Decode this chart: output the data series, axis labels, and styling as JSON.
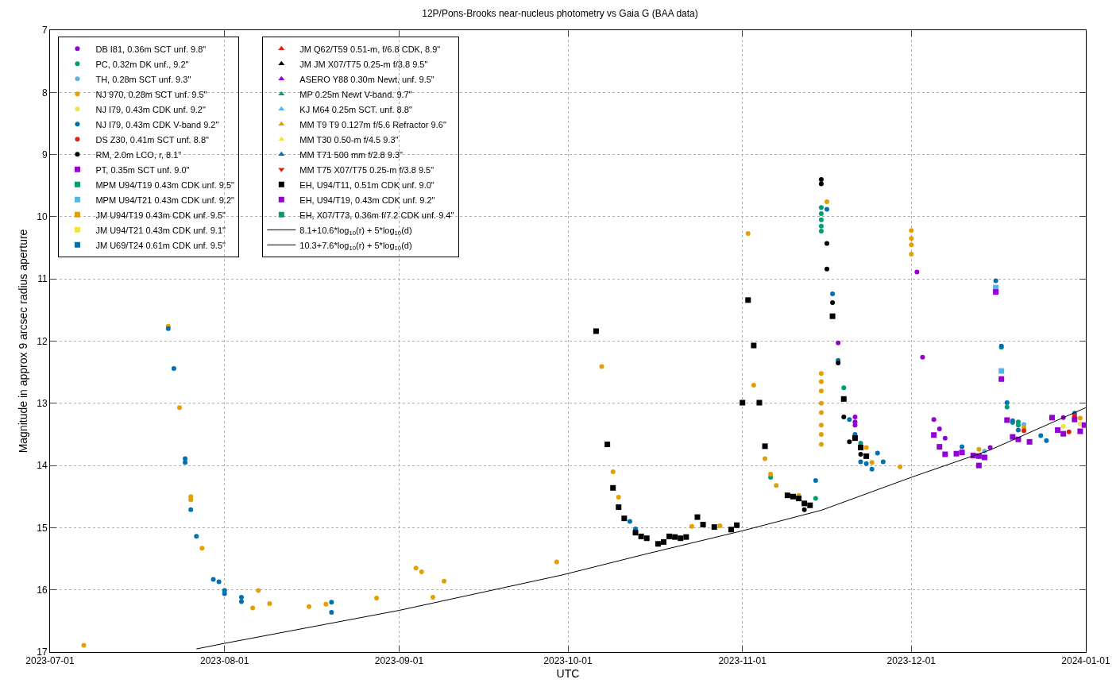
{
  "chart_data": {
    "type": "scatter",
    "title": "12P/Pons-Brooks near-nucleus photometry vs Gaia G (BAA data)",
    "xlabel": "UTC",
    "ylabel": "Magnitude in approx 9 arcsec radius aperture",
    "xlim": [
      "2023-07-01",
      "2024-01-01"
    ],
    "xticks": [
      "2023-07-01",
      "2023-08-01",
      "2023-09-01",
      "2023-10-01",
      "2023-11-01",
      "2023-12-01",
      "2024-01-01"
    ],
    "ylim": [
      17,
      7
    ],
    "yticks": [
      7,
      8,
      9,
      10,
      11,
      12,
      13,
      14,
      15,
      16,
      17
    ],
    "grid": true,
    "legend": "top left",
    "series": [
      {
        "name": "DB I81, 0.36m SCT unf. 9.8\"",
        "color": "#9400d3",
        "marker": "circle",
        "x": [
          "2023-11-18",
          "2023-11-21",
          "2023-11-21",
          "2023-11-21",
          "2023-12-02",
          "2023-12-03",
          "2023-12-05",
          "2023-12-06",
          "2023-12-07",
          "2023-12-15",
          "2023-12-28"
        ],
        "values": [
          12.03,
          13.22,
          13.3,
          13.35,
          10.89,
          12.26,
          13.26,
          13.41,
          13.56,
          13.71,
          13.23
        ]
      },
      {
        "name": "PC, 0.32m DK unf., 9.2\"",
        "color": "#009e73",
        "marker": "circle",
        "x": [
          "2023-11-06",
          "2023-11-14",
          "2023-11-15",
          "2023-11-15",
          "2023-11-15",
          "2023-11-15",
          "2023-11-15",
          "2023-11-19",
          "2023-11-22",
          "2023-12-17",
          "2023-12-18",
          "2023-12-19",
          "2023-12-20",
          "2023-12-20"
        ],
        "values": [
          14.19,
          14.53,
          9.85,
          9.95,
          10.05,
          10.15,
          10.23,
          12.75,
          13.64,
          12.1,
          13.06,
          13.31,
          13.3,
          13.35
        ]
      },
      {
        "name": "TH, 0.28m SCT unf. 9.3\"",
        "color": "#56b4e9",
        "marker": "circle",
        "x": [
          "2023-12-14",
          "2023-12-21"
        ],
        "values": [
          13.77,
          13.34
        ]
      },
      {
        "name": "NJ 970, 0.28m SCT unf. 9.5\"",
        "color": "#e69f00",
        "marker": "circle",
        "x": [
          "2023-07-07",
          "2023-07-22",
          "2023-07-24",
          "2023-07-26",
          "2023-07-26",
          "2023-07-28",
          "2023-08-06",
          "2023-08-07",
          "2023-08-09",
          "2023-08-16",
          "2023-08-19",
          "2023-08-28",
          "2023-09-04",
          "2023-09-05",
          "2023-09-07",
          "2023-09-09",
          "2023-09-29",
          "2023-10-07",
          "2023-10-09",
          "2023-10-10",
          "2023-10-23",
          "2023-10-28",
          "2023-11-02",
          "2023-11-03",
          "2023-11-05",
          "2023-11-06",
          "2023-11-07",
          "2023-11-11",
          "2023-11-15",
          "2023-11-15",
          "2023-11-15",
          "2023-11-15",
          "2023-11-15",
          "2023-11-15",
          "2023-11-15",
          "2023-11-15",
          "2023-11-16",
          "2023-11-23",
          "2023-11-24",
          "2023-11-29",
          "2023-12-01",
          "2023-12-01",
          "2023-12-01",
          "2023-12-01",
          "2023-12-13",
          "2023-12-21",
          "2023-12-31"
        ],
        "values": [
          16.89,
          11.76,
          13.07,
          14.5,
          14.55,
          15.33,
          16.29,
          16.01,
          16.22,
          16.27,
          16.23,
          16.13,
          15.65,
          15.71,
          16.12,
          15.86,
          15.55,
          12.41,
          14.1,
          14.51,
          14.98,
          14.97,
          10.27,
          12.71,
          13.89,
          14.14,
          14.32,
          14.48,
          12.52,
          12.65,
          12.8,
          13.0,
          13.15,
          13.35,
          13.5,
          13.66,
          9.76,
          13.71,
          13.95,
          14.02,
          10.22,
          10.35,
          10.45,
          10.6,
          13.74,
          13.39,
          13.24
        ]
      },
      {
        "name": "NJ I79, 0.43m CDK unf. 9.2\"",
        "color": "#f0e442",
        "marker": "circle",
        "x": [
          "2023-12-28",
          "2023-12-31"
        ],
        "values": [
          13.37,
          13.33
        ]
      },
      {
        "name": "NJ I79, 0.43m CDK V-band 9.2\"",
        "color": "#0072b2",
        "marker": "circle",
        "x": [
          "2023-07-22",
          "2023-07-23",
          "2023-07-25",
          "2023-07-25",
          "2023-07-26",
          "2023-07-27",
          "2023-07-30",
          "2023-07-31",
          "2023-08-01",
          "2023-08-01",
          "2023-08-04",
          "2023-08-04",
          "2023-08-20",
          "2023-08-20",
          "2023-10-12",
          "2023-10-13",
          "2023-11-14",
          "2023-11-16",
          "2023-11-17",
          "2023-11-18",
          "2023-11-20",
          "2023-11-21",
          "2023-11-22",
          "2023-11-23",
          "2023-11-24",
          "2023-11-25",
          "2023-11-26",
          "2023-12-10",
          "2023-12-16",
          "2023-12-17",
          "2023-12-18",
          "2023-12-19",
          "2023-12-20",
          "2023-12-24",
          "2023-12-25",
          "2023-12-30"
        ],
        "values": [
          11.8,
          12.44,
          13.89,
          13.95,
          14.71,
          15.14,
          15.83,
          15.87,
          16.01,
          16.06,
          16.12,
          16.19,
          16.2,
          16.36,
          14.9,
          15.02,
          14.24,
          9.88,
          11.24,
          12.31,
          13.26,
          13.5,
          13.94,
          13.97,
          14.06,
          13.8,
          13.94,
          13.7,
          11.03,
          12.08,
          12.99,
          13.28,
          13.43,
          13.52,
          13.6,
          13.16
        ]
      },
      {
        "name": "DS Z30, 0.41m SCT unf. 8.8\"",
        "color": "#e51e10",
        "marker": "circle",
        "x": [
          "2023-12-21",
          "2023-12-29",
          "2023-12-30"
        ],
        "values": [
          13.44,
          13.46,
          13.2
        ]
      },
      {
        "name": "RM, 2.0m LCO, r, 8.1\"",
        "color": "#000000",
        "marker": "circle",
        "x": [
          "2023-11-12",
          "2023-11-15",
          "2023-11-15",
          "2023-11-16",
          "2023-11-16",
          "2023-11-17",
          "2023-11-18",
          "2023-11-19",
          "2023-11-20",
          "2023-11-22"
        ],
        "values": [
          14.71,
          9.4,
          9.47,
          10.43,
          10.84,
          11.38,
          12.35,
          13.22,
          13.62,
          13.82
        ]
      },
      {
        "name": "PT, 0.35m SCT unf. 9.0\"",
        "color": "#9400d3",
        "marker": "square"
      },
      {
        "name": "MPM U94/T19 0.43m CDK unf. 9.5\"",
        "color": "#009e73",
        "marker": "square"
      },
      {
        "name": "MPM U94/T21 0.43m CDK unf. 9.2\"",
        "color": "#56b4e9",
        "marker": "square",
        "x": [
          "2023-12-16",
          "2023-12-17"
        ],
        "values": [
          11.14,
          12.48
        ]
      },
      {
        "name": "JM U94/T19 0.43m CDK unf. 9.5\"",
        "color": "#e69f00",
        "marker": "square"
      },
      {
        "name": "JM U94/T21 0.43m CDK unf. 9.1\"",
        "color": "#f0e442",
        "marker": "square"
      },
      {
        "name": "JM U69/T24 0.61m CDK unf. 9.5\"",
        "color": "#0072b2",
        "marker": "square"
      },
      {
        "name": "JM Q62/T59 0.51-m, f/6.8 CDK, 8.9\"",
        "color": "#e51e10",
        "marker": "triangle"
      },
      {
        "name": "JM JM X07/T75 0.25-m f/3.8 9.5\"",
        "color": "#000000",
        "marker": "triangle"
      },
      {
        "name": "ASERO Y88 0.30m Newt. unf. 9.5\"",
        "color": "#9400d3",
        "marker": "triangle"
      },
      {
        "name": "MP 0.25m Newt V-band. 9.7\"",
        "color": "#009e73",
        "marker": "triangle"
      },
      {
        "name": "KJ M64 0.25m SCT. unf. 8.8\"",
        "color": "#56b4e9",
        "marker": "triangle"
      },
      {
        "name": "MM T9 T9 0.127m f/5.6 Refractor 9.6\"",
        "color": "#e69f00",
        "marker": "triangle"
      },
      {
        "name": "MM T30 0.50-m f/4.5 9.3\"",
        "color": "#f0e442",
        "marker": "triangle"
      },
      {
        "name": "MM T71 500 mm f/2.8 9.3\"",
        "color": "#0072b2",
        "marker": "triangle"
      },
      {
        "name": "MM T75 X07/T75 0.25-m f/3.8 9.5\"",
        "color": "#e51e10",
        "marker": "triangle-down"
      },
      {
        "name": "EH, U94/T11, 0.51m CDK unf. 9.0\"",
        "color": "#000000",
        "marker": "square",
        "x": [
          "2023-10-06",
          "2023-10-08",
          "2023-10-09",
          "2023-10-10",
          "2023-10-11",
          "2023-10-13",
          "2023-10-14",
          "2023-10-15",
          "2023-10-17",
          "2023-10-18",
          "2023-10-19",
          "2023-10-20",
          "2023-10-21",
          "2023-10-22",
          "2023-10-24",
          "2023-10-25",
          "2023-10-27",
          "2023-10-30",
          "2023-10-31",
          "2023-11-01",
          "2023-11-02",
          "2023-11-03",
          "2023-11-04",
          "2023-11-05",
          "2023-11-09",
          "2023-11-10",
          "2023-11-11",
          "2023-11-12",
          "2023-11-13",
          "2023-11-17",
          "2023-11-19",
          "2023-11-21",
          "2023-11-22",
          "2023-11-23"
        ],
        "values": [
          11.84,
          13.66,
          14.36,
          14.67,
          14.85,
          15.08,
          15.14,
          15.17,
          15.26,
          15.23,
          15.14,
          15.15,
          15.17,
          15.15,
          14.83,
          14.95,
          14.99,
          15.03,
          14.96,
          12.99,
          11.34,
          12.07,
          12.99,
          13.69,
          14.48,
          14.5,
          14.53,
          14.61,
          14.64,
          11.6,
          12.93,
          13.56,
          13.71,
          13.85
        ]
      },
      {
        "name": "EH, U94/T19, 0.43m CDK unf. 9.2\"",
        "color": "#9400d3",
        "marker": "square",
        "x": [
          "2023-12-05",
          "2023-12-06",
          "2023-12-07",
          "2023-12-09",
          "2023-12-10",
          "2023-12-12",
          "2023-12-13",
          "2023-12-13",
          "2023-12-14",
          "2023-12-16",
          "2023-12-17",
          "2023-12-18",
          "2023-12-19",
          "2023-12-20",
          "2023-12-22",
          "2023-12-26",
          "2023-12-27",
          "2023-12-28",
          "2023-12-30",
          "2023-12-31",
          "2023-12-31T18:00"
        ],
        "values": [
          13.51,
          13.7,
          13.82,
          13.81,
          13.79,
          13.84,
          13.85,
          14.0,
          13.87,
          11.21,
          12.61,
          13.27,
          13.54,
          13.58,
          13.62,
          13.23,
          13.43,
          13.49,
          13.26,
          13.45,
          13.35
        ]
      },
      {
        "name": "EH, X07/T73, 0.36m f/7.2 CDK unf. 9.4\"",
        "color": "#009e73",
        "marker": "square"
      },
      {
        "name": "8.1+10.6*log$_{10}$(r) + 5*log$_{10}$(d)",
        "type": "line",
        "color": "#000000",
        "line_style": "solid",
        "x": [
          "2023-07-27",
          "2023-08-01",
          "2023-09-01",
          "2023-09-30",
          "2023-10-15",
          "2023-11-01",
          "2023-11-15",
          "2023-12-01",
          "2023-12-15",
          "2024-01-01"
        ],
        "values": [
          16.95,
          16.86,
          16.33,
          15.76,
          15.42,
          15.05,
          14.72,
          14.19,
          13.75,
          13.07
        ]
      },
      {
        "name": "10.3+7.6*log$_{10}$(r) + 5*log$_{10}$(d)",
        "type": "line",
        "color": "#000000",
        "line_style": "solid"
      }
    ]
  }
}
